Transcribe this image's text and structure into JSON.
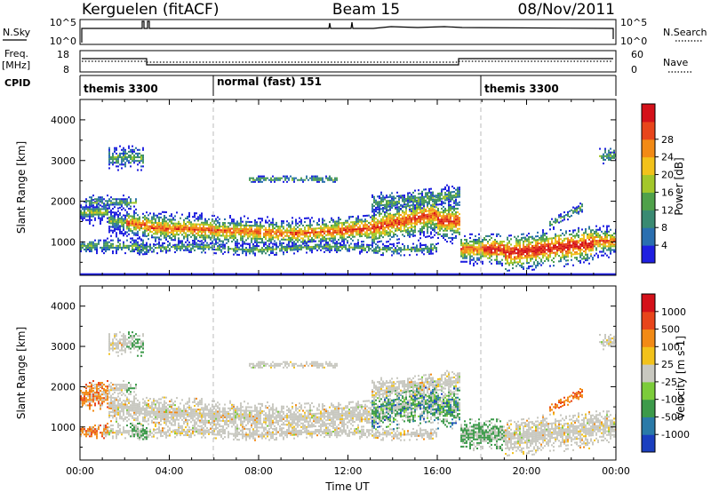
{
  "header": {
    "radar": "Kerguelen (fitACF)",
    "beam": "Beam 15",
    "date": "08/Nov/2011"
  },
  "summary_panel": {
    "nsky_label": "N.Sky",
    "nsearch_label": "N.Search",
    "nsky_ticks": [
      "10^5",
      "10^0"
    ],
    "nsearch_ticks": [
      "10^5",
      "10^0"
    ],
    "freq_label_1": "Freq.",
    "freq_label_2": "[MHz]",
    "freq_ticks": [
      "18",
      "8"
    ],
    "nave_label": "Nave",
    "nave_ticks": [
      "60",
      "0"
    ],
    "cpid_label": "CPID",
    "cpid_segments": [
      {
        "label": "themis 3300",
        "start_hour": 0,
        "end_hour": 6
      },
      {
        "label": "normal (fast) 151",
        "start_hour": 6,
        "end_hour": 18
      },
      {
        "label": "themis 3300",
        "start_hour": 18,
        "end_hour": 24
      }
    ]
  },
  "chart_data": [
    {
      "type": "heatmap",
      "title": "",
      "xlabel": "",
      "ylabel": "Slant Range [km]",
      "x_range_hours": [
        0,
        24
      ],
      "ylim": [
        180,
        4500
      ],
      "yticks": [
        "1000",
        "2000",
        "3000",
        "4000"
      ],
      "colorbar_label": "Power [dB]",
      "colorbar_ticks": [
        "4",
        "8",
        "12",
        "16",
        "20",
        "24",
        "28"
      ],
      "colors": [
        "#1f1fe0",
        "#2a6fb0",
        "#3a8a72",
        "#4fa14a",
        "#a3c72a",
        "#f2c21b",
        "#f28a16",
        "#e8451b",
        "#d4111a"
      ]
    },
    {
      "type": "heatmap",
      "title": "",
      "xlabel": "Time UT",
      "ylabel": "Slant Range [km]",
      "x_range_hours": [
        0,
        24
      ],
      "ylim": [
        180,
        4500
      ],
      "yticks": [
        "1000",
        "2000",
        "3000",
        "4000"
      ],
      "xticks": [
        "00:00",
        "04:00",
        "08:00",
        "12:00",
        "16:00",
        "20:00",
        "00:00"
      ],
      "colorbar_label": "Velocity [m s-1]",
      "colorbar_ticks": [
        "1000",
        "500",
        "100",
        "25",
        "-25",
        "-100",
        "-500",
        "-1000"
      ],
      "colors": [
        "#1b3fbf",
        "#2a7aa8",
        "#3c9a4a",
        "#7ccc3a",
        "#c8c8c0",
        "#f2c21b",
        "#f28a16",
        "#e8451b",
        "#d4111a"
      ]
    }
  ]
}
